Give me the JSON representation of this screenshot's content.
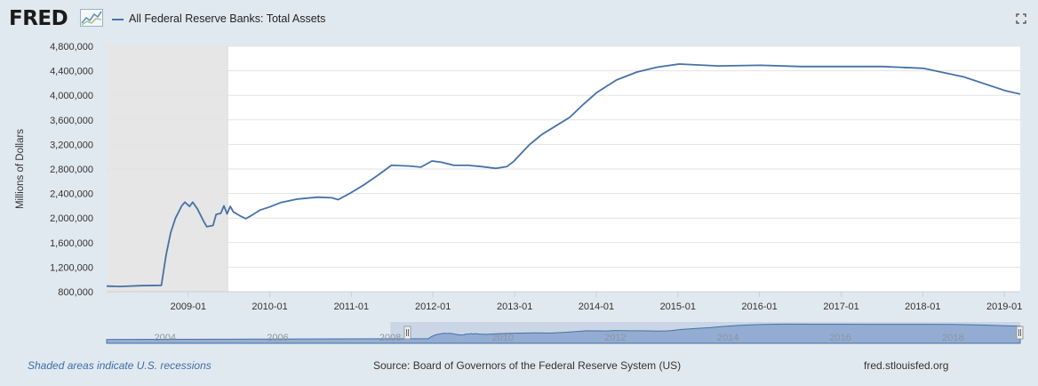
{
  "header": {
    "logo_text": "FRED",
    "legend_label": "All Federal Reserve Banks: Total Assets",
    "fullscreen_icon": "fullscreen-icon"
  },
  "footer": {
    "recession_note": "Shaded areas indicate U.S. recessions",
    "source": "Source: Board of Governors of the Federal Reserve System (US)",
    "site": "fred.stlouisfed.org"
  },
  "colors": {
    "line": "#4572a7",
    "recession": "#e6e6e6",
    "background": "#e1e9f0",
    "plot_background": "#ffffff",
    "navigator_fill": "#8aa4cc"
  },
  "chart_data": {
    "type": "line",
    "title": "",
    "xlabel": "",
    "ylabel": "Millions of Dollars",
    "ylim": [
      800000,
      4800000
    ],
    "yticks": [
      800000,
      1200000,
      1600000,
      2000000,
      2400000,
      2800000,
      3200000,
      3600000,
      4000000,
      4400000,
      4800000
    ],
    "ytick_labels": [
      "800,000",
      "1,200,000",
      "1,600,000",
      "2,000,000",
      "2,400,000",
      "2,800,000",
      "3,200,000",
      "3,600,000",
      "4,000,000",
      "4,400,000",
      "4,800,000"
    ],
    "xlim": [
      "2008-01-02",
      "2019-03-13"
    ],
    "xticks": [
      "2009-01",
      "2010-01",
      "2011-01",
      "2012-01",
      "2013-01",
      "2014-01",
      "2015-01",
      "2016-01",
      "2017-01",
      "2018-01",
      "2019-01"
    ],
    "grid": true,
    "legend_position": "top-left",
    "recessions": [
      [
        "2008-01-02",
        "2009-06-30"
      ]
    ],
    "series": [
      {
        "name": "All Federal Reserve Banks: Total Assets",
        "points": [
          [
            "2008-01-02",
            891000
          ],
          [
            "2008-03-01",
            885000
          ],
          [
            "2008-06-01",
            898000
          ],
          [
            "2008-09-03",
            905000
          ],
          [
            "2008-09-24",
            1400000
          ],
          [
            "2008-10-15",
            1770000
          ],
          [
            "2008-11-05",
            2000000
          ],
          [
            "2008-12-03",
            2200000
          ],
          [
            "2008-12-17",
            2260000
          ],
          [
            "2009-01-07",
            2190000
          ],
          [
            "2009-01-21",
            2260000
          ],
          [
            "2009-02-11",
            2150000
          ],
          [
            "2009-03-11",
            1950000
          ],
          [
            "2009-03-25",
            1860000
          ],
          [
            "2009-04-22",
            1880000
          ],
          [
            "2009-05-06",
            2060000
          ],
          [
            "2009-05-27",
            2080000
          ],
          [
            "2009-06-10",
            2200000
          ],
          [
            "2009-06-24",
            2070000
          ],
          [
            "2009-07-08",
            2190000
          ],
          [
            "2009-07-22",
            2100000
          ],
          [
            "2009-08-19",
            2040000
          ],
          [
            "2009-09-16",
            1990000
          ],
          [
            "2009-10-14",
            2050000
          ],
          [
            "2009-11-18",
            2130000
          ],
          [
            "2009-12-30",
            2180000
          ],
          [
            "2010-02-17",
            2250000
          ],
          [
            "2010-05-05",
            2310000
          ],
          [
            "2010-08-04",
            2340000
          ],
          [
            "2010-10-06",
            2330000
          ],
          [
            "2010-11-03",
            2300000
          ],
          [
            "2010-12-29",
            2410000
          ],
          [
            "2011-03-02",
            2550000
          ],
          [
            "2011-05-04",
            2710000
          ],
          [
            "2011-06-29",
            2860000
          ],
          [
            "2011-09-14",
            2850000
          ],
          [
            "2011-11-09",
            2830000
          ],
          [
            "2011-12-28",
            2930000
          ],
          [
            "2012-02-08",
            2910000
          ],
          [
            "2012-04-04",
            2860000
          ],
          [
            "2012-06-06",
            2860000
          ],
          [
            "2012-08-01",
            2840000
          ],
          [
            "2012-10-10",
            2810000
          ],
          [
            "2012-11-28",
            2840000
          ],
          [
            "2012-12-26",
            2920000
          ],
          [
            "2013-03-06",
            3190000
          ],
          [
            "2013-05-01",
            3360000
          ],
          [
            "2013-07-03",
            3500000
          ],
          [
            "2013-09-04",
            3640000
          ],
          [
            "2013-11-06",
            3860000
          ],
          [
            "2014-01-01",
            4040000
          ],
          [
            "2014-04-02",
            4250000
          ],
          [
            "2014-07-02",
            4380000
          ],
          [
            "2014-10-01",
            4460000
          ],
          [
            "2015-01-07",
            4510000
          ],
          [
            "2015-07-01",
            4480000
          ],
          [
            "2016-01-06",
            4490000
          ],
          [
            "2016-07-06",
            4470000
          ],
          [
            "2017-01-04",
            4470000
          ],
          [
            "2017-07-05",
            4470000
          ],
          [
            "2018-01-03",
            4440000
          ],
          [
            "2018-07-04",
            4300000
          ],
          [
            "2019-01-02",
            4080000
          ],
          [
            "2019-03-13",
            4020000
          ]
        ]
      }
    ],
    "navigator": {
      "xticks": [
        "2004",
        "2006",
        "2008",
        "2010",
        "2012",
        "2014",
        "2016",
        "2018"
      ],
      "xlim": [
        "2002-12-18",
        "2019-03-13"
      ],
      "selection": [
        "2008-01-02",
        "2019-03-13"
      ]
    }
  }
}
